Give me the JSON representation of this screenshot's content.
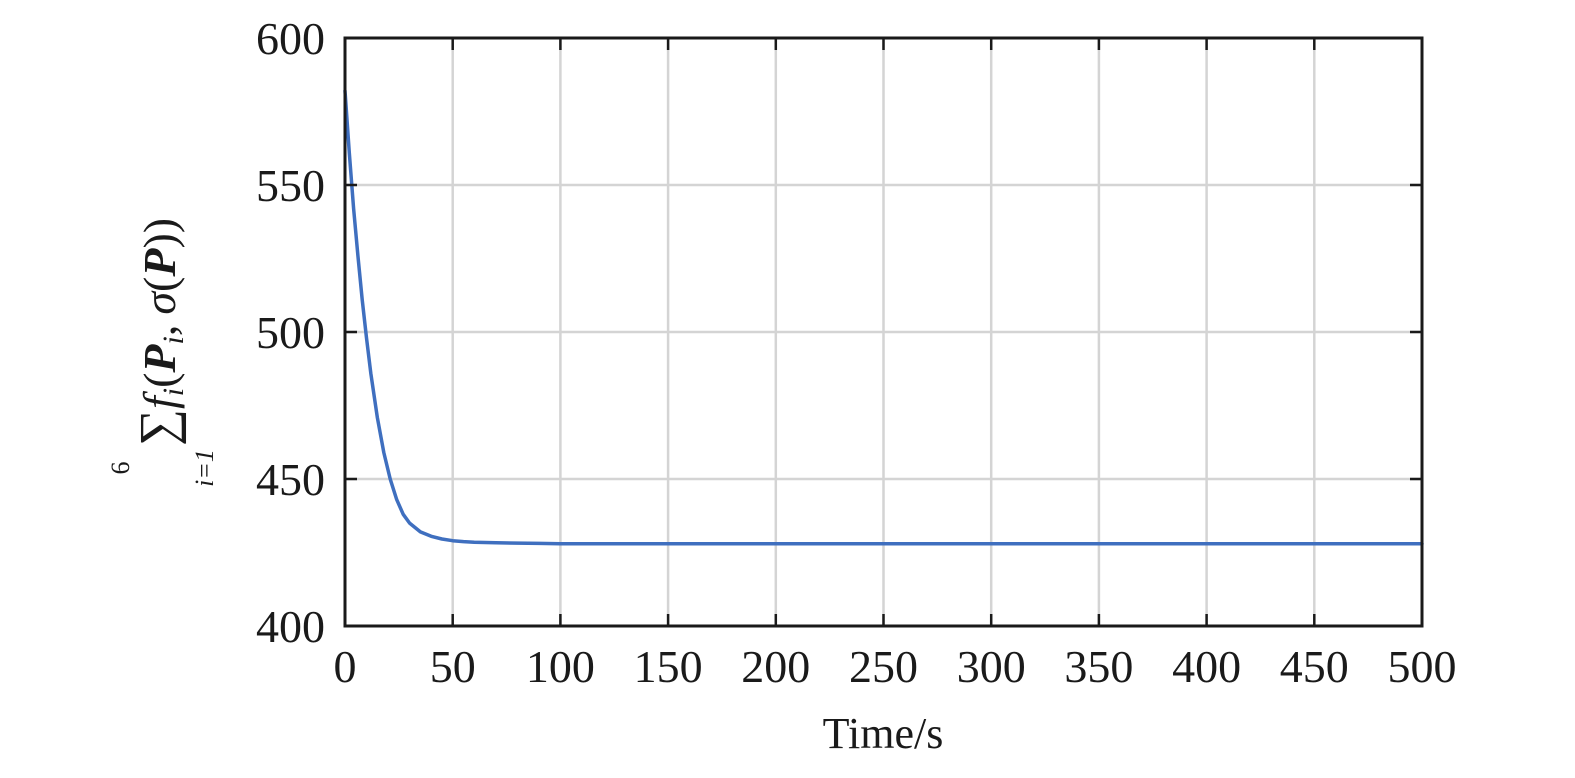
{
  "chart_data": {
    "type": "line",
    "xlabel": "Time/s",
    "ylabel": {
      "sum_symbol": "∑",
      "sum_upper": "6",
      "sum_lower": "i=1",
      "f": "f",
      "f_sub": "i",
      "open1": "(",
      "P1": "P",
      "P1_sub": "i",
      "comma": ",",
      "sigma": "σ",
      "open2": "(",
      "P2": "P",
      "close": "))"
    },
    "xlim": [
      0,
      500
    ],
    "ylim": [
      400,
      600
    ],
    "xticks": [
      0,
      50,
      100,
      150,
      200,
      250,
      300,
      350,
      400,
      450,
      500
    ],
    "yticks": [
      400,
      450,
      500,
      550,
      600
    ],
    "grid": true,
    "series": [
      {
        "color": "#3f6fbf",
        "x": [
          0,
          2,
          4,
          6,
          8,
          10,
          12,
          15,
          18,
          21,
          24,
          27,
          30,
          35,
          40,
          45,
          50,
          55,
          60,
          70,
          80,
          90,
          100,
          120,
          150,
          200,
          250,
          300,
          350,
          400,
          450,
          500
        ],
        "y": [
          582,
          561,
          542,
          526,
          511,
          498,
          486,
          471,
          459,
          450,
          443,
          438,
          435,
          432,
          430.5,
          429.6,
          429,
          428.7,
          428.5,
          428.3,
          428.2,
          428.1,
          428,
          428,
          428,
          428,
          428,
          428,
          428,
          428,
          428,
          428
        ]
      }
    ]
  }
}
